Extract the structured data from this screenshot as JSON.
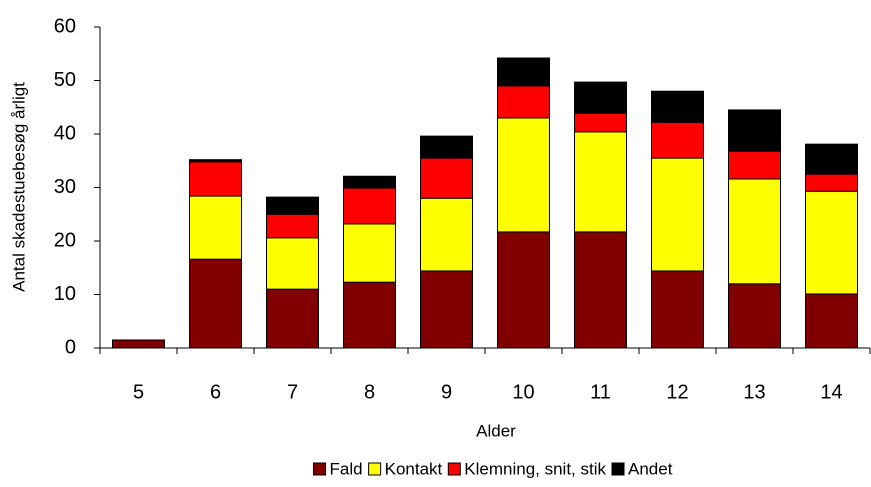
{
  "chart_data": {
    "type": "stacked-bar",
    "x_label": "Alder",
    "y_label": "Antal skadestuebesøg årligt",
    "categories": [
      "5",
      "6",
      "7",
      "8",
      "9",
      "10",
      "11",
      "12",
      "13",
      "14"
    ],
    "series": [
      {
        "name": "Fald",
        "color": "#800000",
        "values": [
          1.5,
          16.6,
          11,
          12.3,
          14.4,
          21.7,
          21.7,
          14.4,
          12,
          10.1
        ]
      },
      {
        "name": "Kontakt",
        "color": "#ffff00",
        "values": [
          0,
          11.8,
          9.6,
          10.9,
          13.6,
          21.3,
          18.7,
          21.1,
          19.6,
          19.2
        ]
      },
      {
        "name": "Klemning, snit, stik",
        "color": "#ff0000",
        "values": [
          0,
          6.4,
          4.4,
          6.7,
          7.5,
          6,
          3.5,
          6.7,
          5.2,
          3.2
        ]
      },
      {
        "name": "Andet",
        "color": "#000000",
        "values": [
          0,
          0.4,
          3.2,
          2.2,
          4.1,
          5.2,
          5.8,
          5.8,
          7.7,
          5.6
        ]
      }
    ],
    "ylim": [
      0,
      60
    ],
    "yticks": [
      0,
      10,
      20,
      30,
      40,
      50,
      60
    ]
  }
}
